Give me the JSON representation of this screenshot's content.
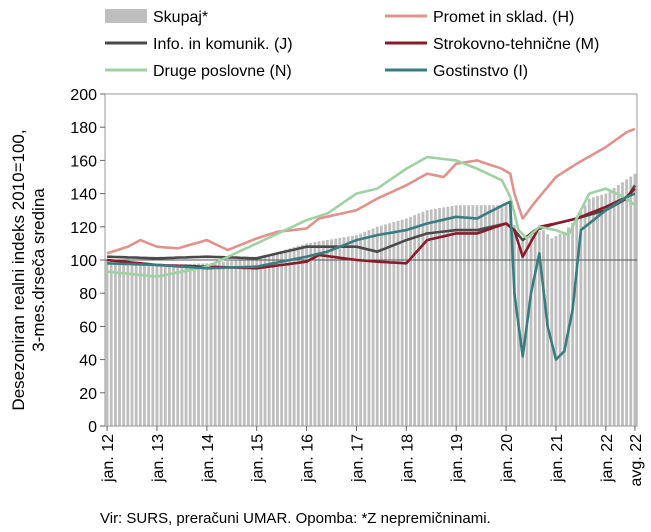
{
  "chart_data": {
    "type": "line",
    "ylabel_lines": [
      "Desezoniran realni indeks 2010=100,",
      "3-mes.drseča sredina"
    ],
    "ylim": [
      0,
      200
    ],
    "yticks": [
      0,
      20,
      40,
      60,
      80,
      100,
      120,
      140,
      160,
      180,
      200
    ],
    "reference_line": 100,
    "x_start": "2012-01",
    "x_end": "2022-08",
    "x_tick_labels": [
      "jan. 12",
      "jan. 13",
      "jan. 14",
      "jan. 15",
      "jan. 16",
      "jan. 17",
      "jan. 18",
      "jan. 19",
      "jan. 20",
      "jan. 21",
      "jan. 22",
      "avg. 22"
    ],
    "legend_placement": "top",
    "note": "Vir: SURS, preračuni UMAR. Opomba: *Z nepremičninami.",
    "series": [
      {
        "name": "Skupaj*",
        "kind": "bar",
        "color": "#bfbfbf",
        "knots": [
          [
            "2012-01",
            100
          ],
          [
            "2013-01",
            97
          ],
          [
            "2014-01",
            98
          ],
          [
            "2015-01",
            101
          ],
          [
            "2016-01",
            110
          ],
          [
            "2017-01",
            115
          ],
          [
            "2017-06",
            120
          ],
          [
            "2018-01",
            125
          ],
          [
            "2018-06",
            130
          ],
          [
            "2019-01",
            133
          ],
          [
            "2019-12",
            133
          ],
          [
            "2020-02",
            134
          ],
          [
            "2020-04",
            108
          ],
          [
            "2020-06",
            115
          ],
          [
            "2020-10",
            118
          ],
          [
            "2020-12",
            113
          ],
          [
            "2021-03",
            117
          ],
          [
            "2021-06",
            125
          ],
          [
            "2021-09",
            137
          ],
          [
            "2022-01",
            140
          ],
          [
            "2022-08",
            152
          ]
        ]
      },
      {
        "name": "Promet in sklad. (H)",
        "kind": "line",
        "color": "#e0938d",
        "knots": [
          [
            "2012-01",
            104
          ],
          [
            "2012-06",
            108
          ],
          [
            "2012-09",
            112
          ],
          [
            "2013-01",
            108
          ],
          [
            "2013-06",
            107
          ],
          [
            "2014-01",
            112
          ],
          [
            "2014-06",
            106
          ],
          [
            "2015-01",
            113
          ],
          [
            "2015-06",
            117
          ],
          [
            "2016-01",
            119
          ],
          [
            "2016-04",
            125
          ],
          [
            "2017-01",
            130
          ],
          [
            "2017-06",
            137
          ],
          [
            "2018-01",
            145
          ],
          [
            "2018-06",
            152
          ],
          [
            "2018-10",
            150
          ],
          [
            "2019-01",
            158
          ],
          [
            "2019-06",
            160
          ],
          [
            "2019-12",
            155
          ],
          [
            "2020-02",
            152
          ],
          [
            "2020-03",
            140
          ],
          [
            "2020-05",
            125
          ],
          [
            "2020-08",
            135
          ],
          [
            "2021-01",
            150
          ],
          [
            "2021-06",
            158
          ],
          [
            "2022-01",
            168
          ],
          [
            "2022-06",
            177
          ],
          [
            "2022-08",
            179
          ]
        ]
      },
      {
        "name": "Info. in komunik. (J)",
        "kind": "line",
        "color": "#4a4a4a",
        "knots": [
          [
            "2012-01",
            102
          ],
          [
            "2013-01",
            101
          ],
          [
            "2014-01",
            102
          ],
          [
            "2015-01",
            101
          ],
          [
            "2015-06",
            104
          ],
          [
            "2016-01",
            108
          ],
          [
            "2016-06",
            108
          ],
          [
            "2017-01",
            108
          ],
          [
            "2017-06",
            105
          ],
          [
            "2018-01",
            112
          ],
          [
            "2018-06",
            116
          ],
          [
            "2019-01",
            118
          ],
          [
            "2019-06",
            118
          ],
          [
            "2020-01",
            122
          ],
          [
            "2020-03",
            118
          ],
          [
            "2020-05",
            112
          ],
          [
            "2020-08",
            118
          ],
          [
            "2021-01",
            122
          ],
          [
            "2021-06",
            125
          ],
          [
            "2022-01",
            130
          ],
          [
            "2022-06",
            137
          ],
          [
            "2022-08",
            145
          ]
        ]
      },
      {
        "name": "Strokovno-tehnične (M)",
        "kind": "line",
        "color": "#8b1a2a",
        "knots": [
          [
            "2012-01",
            100
          ],
          [
            "2013-01",
            97
          ],
          [
            "2014-01",
            96
          ],
          [
            "2015-01",
            95
          ],
          [
            "2016-01",
            99
          ],
          [
            "2016-04",
            103
          ],
          [
            "2017-01",
            100
          ],
          [
            "2017-06",
            99
          ],
          [
            "2018-01",
            98
          ],
          [
            "2018-06",
            112
          ],
          [
            "2019-01",
            116
          ],
          [
            "2019-06",
            116
          ],
          [
            "2020-01",
            122
          ],
          [
            "2020-03",
            118
          ],
          [
            "2020-05",
            102
          ],
          [
            "2020-09",
            120
          ],
          [
            "2021-01",
            122
          ],
          [
            "2021-06",
            125
          ],
          [
            "2022-01",
            132
          ],
          [
            "2022-06",
            138
          ],
          [
            "2022-08",
            143
          ]
        ]
      },
      {
        "name": "Druge poslovne (N)",
        "kind": "line",
        "color": "#9fd1a3",
        "knots": [
          [
            "2012-01",
            93
          ],
          [
            "2013-01",
            90
          ],
          [
            "2014-01",
            96
          ],
          [
            "2015-01",
            110
          ],
          [
            "2016-01",
            124
          ],
          [
            "2016-06",
            128
          ],
          [
            "2017-01",
            140
          ],
          [
            "2017-06",
            143
          ],
          [
            "2018-01",
            155
          ],
          [
            "2018-06",
            162
          ],
          [
            "2019-01",
            160
          ],
          [
            "2019-06",
            155
          ],
          [
            "2019-12",
            148
          ],
          [
            "2020-02",
            138
          ],
          [
            "2020-04",
            118
          ],
          [
            "2020-06",
            113
          ],
          [
            "2020-09",
            120
          ],
          [
            "2021-01",
            118
          ],
          [
            "2021-04",
            115
          ],
          [
            "2021-06",
            125
          ],
          [
            "2021-09",
            140
          ],
          [
            "2022-01",
            143
          ],
          [
            "2022-06",
            137
          ],
          [
            "2022-08",
            133
          ]
        ]
      },
      {
        "name": "Gostinstvo (I)",
        "kind": "line",
        "color": "#3a7d80",
        "knots": [
          [
            "2012-01",
            98
          ],
          [
            "2013-01",
            97
          ],
          [
            "2014-01",
            95
          ],
          [
            "2015-01",
            96
          ],
          [
            "2016-01",
            102
          ],
          [
            "2016-06",
            105
          ],
          [
            "2017-01",
            112
          ],
          [
            "2017-06",
            115
          ],
          [
            "2018-01",
            118
          ],
          [
            "2018-06",
            122
          ],
          [
            "2019-01",
            126
          ],
          [
            "2019-06",
            125
          ],
          [
            "2020-01",
            134
          ],
          [
            "2020-02",
            135
          ],
          [
            "2020-03",
            80
          ],
          [
            "2020-05",
            42
          ],
          [
            "2020-07",
            80
          ],
          [
            "2020-09",
            104
          ],
          [
            "2020-11",
            60
          ],
          [
            "2021-01",
            40
          ],
          [
            "2021-03",
            45
          ],
          [
            "2021-05",
            70
          ],
          [
            "2021-07",
            118
          ],
          [
            "2021-10",
            124
          ],
          [
            "2022-01",
            130
          ],
          [
            "2022-06",
            138
          ],
          [
            "2022-08",
            140
          ]
        ]
      }
    ]
  }
}
